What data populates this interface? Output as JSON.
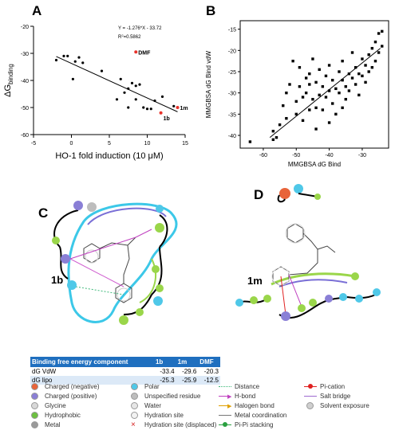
{
  "panels": {
    "a": "A",
    "b": "B",
    "c": "C",
    "d": "D"
  },
  "chart_data": [
    {
      "type": "scatter",
      "title": "",
      "xlabel": "HO-1 fold induction (10 μM)",
      "ylabel": "ΔG",
      "ylabel_sub": "binding",
      "xlim": [
        -5,
        15
      ],
      "ylim": [
        -60,
        -20
      ],
      "xticks": [
        "-5",
        "0",
        "5",
        "10",
        "15"
      ],
      "yticks": [
        "-20",
        "-30",
        "-40",
        "-50",
        "-60"
      ],
      "equation": "Y = -1.276*X - 33.72",
      "r2_prefix": "R",
      "r2_sup": "2",
      "r2_value": "=0.5862",
      "fit": {
        "slope": -1.276,
        "intercept": -33.72,
        "x_range": [
          -2,
          14
        ]
      },
      "points": [
        {
          "x": -2.0,
          "y": -32.5
        },
        {
          "x": -1.0,
          "y": -31.0
        },
        {
          "x": -0.5,
          "y": -31.0
        },
        {
          "x": 0.2,
          "y": -39.5
        },
        {
          "x": 0.5,
          "y": -33.0
        },
        {
          "x": 1.0,
          "y": -31.5
        },
        {
          "x": 1.5,
          "y": -33.5
        },
        {
          "x": 4.0,
          "y": -36.5
        },
        {
          "x": 6.0,
          "y": -47.0
        },
        {
          "x": 6.5,
          "y": -39.5
        },
        {
          "x": 7.0,
          "y": -44.5
        },
        {
          "x": 7.5,
          "y": -43.0
        },
        {
          "x": 7.5,
          "y": -50.0
        },
        {
          "x": 8.0,
          "y": -41.0
        },
        {
          "x": 8.5,
          "y": -47.0
        },
        {
          "x": 8.5,
          "y": -42.0
        },
        {
          "x": 9.0,
          "y": -41.5
        },
        {
          "x": 9.5,
          "y": -50.0
        },
        {
          "x": 10.0,
          "y": -50.5
        },
        {
          "x": 10.5,
          "y": -50.5
        },
        {
          "x": 11.0,
          "y": -47.5
        },
        {
          "x": 12.0,
          "y": -46.0
        },
        {
          "x": 13.5,
          "y": -49.5
        }
      ],
      "highlighted": [
        {
          "label": "DMF",
          "x": 8.5,
          "y": -29.5,
          "color": "#e8322a"
        },
        {
          "label": "1b",
          "x": 11.8,
          "y": -52.0,
          "color": "#e8322a"
        },
        {
          "label": "1m",
          "x": 14.0,
          "y": -50.0,
          "color": "#e8322a"
        }
      ]
    },
    {
      "type": "scatter",
      "title": "",
      "xlabel": "MMGBSA dG Bind",
      "ylabel": "MMGBSA dG Bind vdW",
      "xlim": [
        -67,
        -22
      ],
      "ylim": [
        -43,
        -13
      ],
      "xticks": [
        {
          "v": -60,
          "t": "-60"
        },
        {
          "v": -50,
          "t": "-50"
        },
        {
          "v": -40,
          "t": "-40"
        },
        {
          "v": -30,
          "t": "-30"
        }
      ],
      "yticks": [
        {
          "v": -15,
          "t": "-15"
        },
        {
          "v": -20,
          "t": "-20"
        },
        {
          "v": -25,
          "t": "-25"
        },
        {
          "v": -30,
          "t": "-30"
        },
        {
          "v": -35,
          "t": "-35"
        },
        {
          "v": -40,
          "t": "-40"
        }
      ],
      "fit": {
        "x1": -58,
        "y1": -40.5,
        "x2": -24.5,
        "y2": -19.5
      },
      "points": [
        {
          "x": -64,
          "y": -41.5
        },
        {
          "x": -57,
          "y": -41.0
        },
        {
          "x": -57,
          "y": -39.0
        },
        {
          "x": -56,
          "y": -40.5
        },
        {
          "x": -55,
          "y": -37.5
        },
        {
          "x": -54,
          "y": -33.0
        },
        {
          "x": -53,
          "y": -30.0
        },
        {
          "x": -52,
          "y": -28.0
        },
        {
          "x": -51,
          "y": -22.5
        },
        {
          "x": -50,
          "y": -32.0
        },
        {
          "x": -50,
          "y": -35.0
        },
        {
          "x": -49,
          "y": -28.5
        },
        {
          "x": -49,
          "y": -24.0
        },
        {
          "x": -48,
          "y": -36.5
        },
        {
          "x": -48,
          "y": -31.0
        },
        {
          "x": -47,
          "y": -30.0
        },
        {
          "x": -47,
          "y": -26.5
        },
        {
          "x": -46,
          "y": -34.0
        },
        {
          "x": -46,
          "y": -28.0
        },
        {
          "x": -45,
          "y": -22.0
        },
        {
          "x": -45,
          "y": -31.5
        },
        {
          "x": -44,
          "y": -33.5
        },
        {
          "x": -44,
          "y": -27.5
        },
        {
          "x": -43,
          "y": -24.5
        },
        {
          "x": -43,
          "y": -30.5
        },
        {
          "x": -42,
          "y": -28.5
        },
        {
          "x": -42,
          "y": -34.0
        },
        {
          "x": -41,
          "y": -26.0
        },
        {
          "x": -41,
          "y": -31.0
        },
        {
          "x": -40,
          "y": -29.5
        },
        {
          "x": -40,
          "y": -23.5
        },
        {
          "x": -39,
          "y": -32.5
        },
        {
          "x": -39,
          "y": -27.0
        },
        {
          "x": -38,
          "y": -29.0
        },
        {
          "x": -38,
          "y": -35.0
        },
        {
          "x": -37,
          "y": -25.0
        },
        {
          "x": -37,
          "y": -30.0
        },
        {
          "x": -36,
          "y": -27.0
        },
        {
          "x": -36,
          "y": -22.5
        },
        {
          "x": -35,
          "y": -28.5
        },
        {
          "x": -35,
          "y": -31.5
        },
        {
          "x": -34,
          "y": -25.5
        },
        {
          "x": -34,
          "y": -29.5
        },
        {
          "x": -33,
          "y": -26.5
        },
        {
          "x": -33,
          "y": -20.5
        },
        {
          "x": -32,
          "y": -28.0
        },
        {
          "x": -32,
          "y": -24.0
        },
        {
          "x": -31,
          "y": -30.5
        },
        {
          "x": -31,
          "y": -25.5
        },
        {
          "x": -30,
          "y": -26.0
        },
        {
          "x": -30,
          "y": -22.0
        },
        {
          "x": -29,
          "y": -27.5
        },
        {
          "x": -29,
          "y": -23.5
        },
        {
          "x": -28,
          "y": -21.0
        },
        {
          "x": -28,
          "y": -25.0
        },
        {
          "x": -27,
          "y": -19.5
        },
        {
          "x": -27,
          "y": -24.0
        },
        {
          "x": -26,
          "y": -18.0
        },
        {
          "x": -26,
          "y": -22.5
        },
        {
          "x": -25,
          "y": -20.5
        },
        {
          "x": -25,
          "y": -16.0
        },
        {
          "x": -24,
          "y": -15.5
        },
        {
          "x": -24,
          "y": -19.0
        },
        {
          "x": -36,
          "y": -33.5
        },
        {
          "x": -44,
          "y": -38.5
        },
        {
          "x": -53,
          "y": -36.0
        },
        {
          "x": -46,
          "y": -25.5
        },
        {
          "x": -40,
          "y": -37.0
        }
      ]
    },
    {
      "type": "table",
      "headers": [
        "Binding free energy component",
        "1b",
        "1m",
        "DMF"
      ],
      "rows": [
        [
          "dG VdW",
          "-33.4",
          "-29.6",
          "-20.3"
        ],
        [
          "dG lipo",
          "-25.3",
          "-25.9",
          "-12.5"
        ]
      ]
    }
  ],
  "diagrams": {
    "c_label": "1b",
    "d_label": "1m"
  },
  "legend": {
    "items": [
      {
        "label": "Charged (negative)",
        "kind": "ball",
        "color": "#e8643a"
      },
      {
        "label": "Charged (positive)",
        "kind": "ball",
        "color": "#8a7fd6"
      },
      {
        "label": "Glycine",
        "kind": "ball",
        "color": "#d8d8d8"
      },
      {
        "label": "Hydrophobic",
        "kind": "ball",
        "color": "#6cc040"
      },
      {
        "label": "Metal",
        "kind": "ball",
        "color": "#9a9a9a"
      },
      {
        "label": "Polar",
        "kind": "ball",
        "color": "#4fc8e8"
      },
      {
        "label": "Unspecified residue",
        "kind": "ball",
        "color": "#bdbdbd"
      },
      {
        "label": "Water",
        "kind": "ball",
        "color": "#e6e6e6"
      },
      {
        "label": "Hydration site",
        "kind": "ball",
        "color": "#f2f2f2"
      },
      {
        "label": "Hydration site (displaced)",
        "kind": "cross",
        "color": "#d62020"
      },
      {
        "label": "Distance",
        "kind": "dots",
        "color": "#3cb878"
      },
      {
        "label": "H-bond",
        "kind": "arrow",
        "color": "#c040c0"
      },
      {
        "label": "Halogen bond",
        "kind": "arrow",
        "color": "#e0a000"
      },
      {
        "label": "Metal coordination",
        "kind": "line",
        "color": "#777777"
      },
      {
        "label": "Pi-Pi stacking",
        "kind": "dotline",
        "color": "#2aa040"
      },
      {
        "label": "Pi-cation",
        "kind": "dotline",
        "color": "#e02020"
      },
      {
        "label": "Salt bridge",
        "kind": "line",
        "color": "#9e6ad0"
      },
      {
        "label": "Solvent exposure",
        "kind": "halo",
        "color": "#cfcfcf"
      }
    ]
  }
}
